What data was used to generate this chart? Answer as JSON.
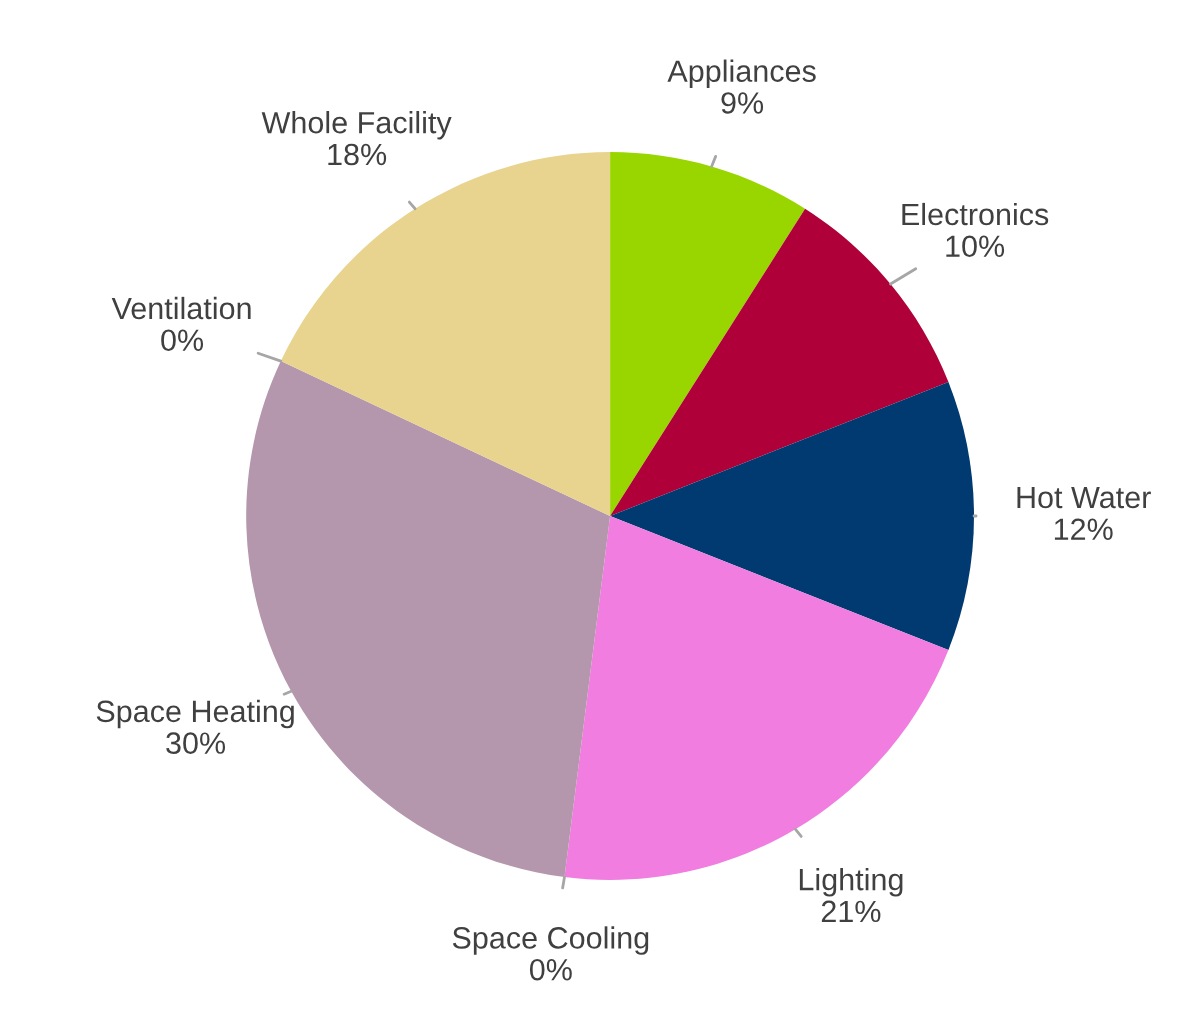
{
  "chart_data": {
    "type": "pie",
    "categories": [
      "Appliances",
      "Electronics",
      "Hot Water",
      "Lighting",
      "Space Cooling",
      "Space Heating",
      "Ventilation",
      "Whole Facility"
    ],
    "values": [
      9,
      10,
      12,
      21,
      0,
      30,
      0,
      18
    ],
    "colors": [
      "#99d600",
      "#b0003a",
      "#003a70",
      "#f07ddf",
      "#4bacc6",
      "#b597ad",
      "#8064a2",
      "#e8d38f"
    ],
    "value_labels": [
      "9%",
      "10%",
      "12%",
      "21%",
      "0%",
      "30%",
      "0%",
      "18%"
    ]
  }
}
